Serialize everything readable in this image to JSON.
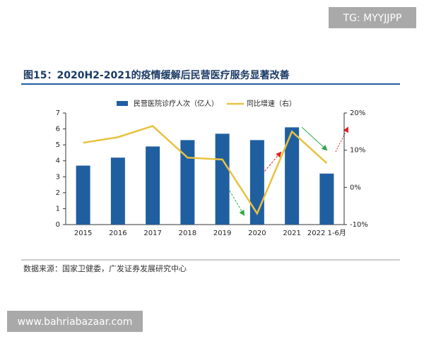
{
  "watermark_top": "TG: MYYJJPP",
  "watermark_bottom": "www.bahriabazaar.com",
  "chart_data": {
    "type": "bar-line",
    "title": "图15：2020H2-2021的疫情缓解后民营医疗服务显著改善",
    "source": "数据来源：国家卫健委，广发证券发展研究中心",
    "categories": [
      "2015",
      "2016",
      "2017",
      "2018",
      "2019",
      "2020",
      "2021",
      "2022 1-6月"
    ],
    "series": [
      {
        "name": "民营医院诊疗人次（亿人）",
        "type": "bar",
        "color": "#1f5fa0",
        "values": [
          3.7,
          4.2,
          4.9,
          5.3,
          5.7,
          5.3,
          6.1,
          3.2
        ]
      },
      {
        "name": "同比增速（右）",
        "type": "line",
        "axis": "y2",
        "color": "#e8c23e",
        "values": [
          12,
          13.5,
          16.5,
          8,
          7.5,
          -7,
          15,
          6.5
        ]
      }
    ],
    "ylim": [
      0,
      7
    ],
    "yticks": [
      0,
      1,
      2,
      3,
      4,
      5,
      6,
      7
    ],
    "y2lim": [
      -10,
      20
    ],
    "y2ticks": [
      {
        "value": -10,
        "label": "-10%"
      },
      {
        "value": 0,
        "label": "0%"
      },
      {
        "value": 10,
        "label": "10%"
      },
      {
        "value": 20,
        "label": "20%"
      }
    ]
  }
}
